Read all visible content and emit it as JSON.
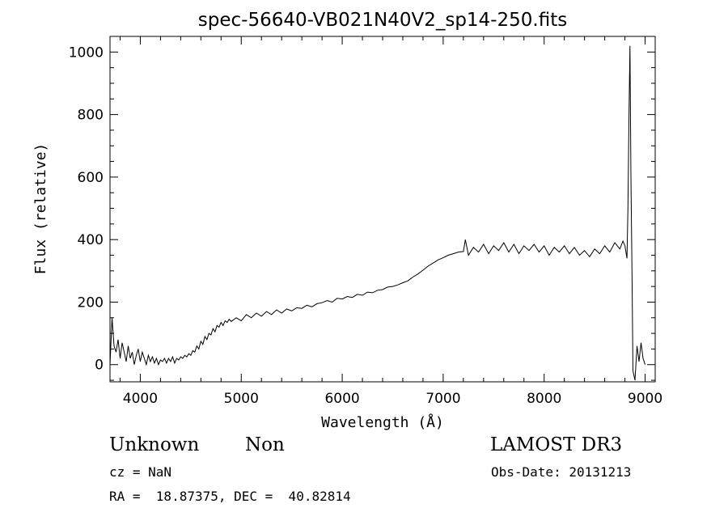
{
  "chart_data": {
    "type": "line",
    "title": "spec-56640-VB021N40V2_sp14-250.fits",
    "xlabel": "Wavelength (Å)",
    "ylabel": "Flux (relative)",
    "xlim": [
      3700,
      9100
    ],
    "ylim": [
      -55,
      1050
    ],
    "xticks": [
      4000,
      5000,
      6000,
      7000,
      8000,
      9000
    ],
    "yticks": [
      0,
      200,
      400,
      600,
      800,
      1000
    ],
    "grid": false,
    "series": [
      {
        "values": [
          [
            3700,
            0
          ],
          [
            3720,
            150
          ],
          [
            3740,
            60
          ],
          [
            3760,
            40
          ],
          [
            3780,
            80
          ],
          [
            3800,
            20
          ],
          [
            3820,
            70
          ],
          [
            3840,
            40
          ],
          [
            3860,
            10
          ],
          [
            3880,
            60
          ],
          [
            3900,
            20
          ],
          [
            3920,
            40
          ],
          [
            3940,
            0
          ],
          [
            3960,
            30
          ],
          [
            3980,
            50
          ],
          [
            4000,
            10
          ],
          [
            4020,
            40
          ],
          [
            4040,
            20
          ],
          [
            4060,
            0
          ],
          [
            4080,
            30
          ],
          [
            4100,
            10
          ],
          [
            4120,
            25
          ],
          [
            4140,
            5
          ],
          [
            4160,
            20
          ],
          [
            4180,
            0
          ],
          [
            4200,
            15
          ],
          [
            4220,
            10
          ],
          [
            4240,
            20
          ],
          [
            4260,
            5
          ],
          [
            4280,
            20
          ],
          [
            4300,
            10
          ],
          [
            4320,
            25
          ],
          [
            4340,
            5
          ],
          [
            4360,
            20
          ],
          [
            4380,
            15
          ],
          [
            4400,
            25
          ],
          [
            4420,
            20
          ],
          [
            4440,
            30
          ],
          [
            4460,
            25
          ],
          [
            4480,
            35
          ],
          [
            4500,
            30
          ],
          [
            4520,
            45
          ],
          [
            4540,
            40
          ],
          [
            4560,
            60
          ],
          [
            4580,
            50
          ],
          [
            4600,
            75
          ],
          [
            4620,
            65
          ],
          [
            4640,
            90
          ],
          [
            4660,
            80
          ],
          [
            4680,
            100
          ],
          [
            4700,
            95
          ],
          [
            4720,
            115
          ],
          [
            4740,
            105
          ],
          [
            4760,
            125
          ],
          [
            4780,
            120
          ],
          [
            4800,
            135
          ],
          [
            4820,
            125
          ],
          [
            4840,
            140
          ],
          [
            4860,
            135
          ],
          [
            4880,
            145
          ],
          [
            4900,
            138
          ],
          [
            4950,
            150
          ],
          [
            5000,
            140
          ],
          [
            5050,
            160
          ],
          [
            5100,
            150
          ],
          [
            5150,
            165
          ],
          [
            5200,
            155
          ],
          [
            5250,
            170
          ],
          [
            5300,
            160
          ],
          [
            5350,
            175
          ],
          [
            5400,
            165
          ],
          [
            5450,
            178
          ],
          [
            5500,
            172
          ],
          [
            5550,
            182
          ],
          [
            5600,
            180
          ],
          [
            5650,
            190
          ],
          [
            5700,
            185
          ],
          [
            5750,
            195
          ],
          [
            5800,
            198
          ],
          [
            5850,
            205
          ],
          [
            5900,
            200
          ],
          [
            5950,
            212
          ],
          [
            6000,
            210
          ],
          [
            6050,
            218
          ],
          [
            6100,
            215
          ],
          [
            6150,
            225
          ],
          [
            6200,
            222
          ],
          [
            6250,
            232
          ],
          [
            6300,
            230
          ],
          [
            6350,
            238
          ],
          [
            6400,
            240
          ],
          [
            6450,
            248
          ],
          [
            6500,
            250
          ],
          [
            6550,
            255
          ],
          [
            6600,
            262
          ],
          [
            6650,
            268
          ],
          [
            6700,
            280
          ],
          [
            6750,
            290
          ],
          [
            6800,
            302
          ],
          [
            6850,
            315
          ],
          [
            6900,
            325
          ],
          [
            6950,
            335
          ],
          [
            7000,
            342
          ],
          [
            7050,
            350
          ],
          [
            7100,
            355
          ],
          [
            7150,
            360
          ],
          [
            7200,
            362
          ],
          [
            7220,
            400
          ],
          [
            7250,
            350
          ],
          [
            7300,
            375
          ],
          [
            7350,
            360
          ],
          [
            7400,
            385
          ],
          [
            7450,
            355
          ],
          [
            7500,
            380
          ],
          [
            7550,
            365
          ],
          [
            7600,
            390
          ],
          [
            7650,
            360
          ],
          [
            7700,
            385
          ],
          [
            7750,
            355
          ],
          [
            7800,
            380
          ],
          [
            7850,
            365
          ],
          [
            7900,
            385
          ],
          [
            7950,
            360
          ],
          [
            8000,
            380
          ],
          [
            8050,
            350
          ],
          [
            8100,
            375
          ],
          [
            8150,
            360
          ],
          [
            8200,
            380
          ],
          [
            8250,
            355
          ],
          [
            8300,
            375
          ],
          [
            8350,
            350
          ],
          [
            8400,
            365
          ],
          [
            8450,
            345
          ],
          [
            8500,
            370
          ],
          [
            8550,
            355
          ],
          [
            8600,
            380
          ],
          [
            8650,
            360
          ],
          [
            8700,
            390
          ],
          [
            8750,
            370
          ],
          [
            8780,
            395
          ],
          [
            8800,
            380
          ],
          [
            8820,
            340
          ],
          [
            8830,
            500
          ],
          [
            8840,
            780
          ],
          [
            8850,
            1020
          ],
          [
            8860,
            600
          ],
          [
            8870,
            300
          ],
          [
            8880,
            -20
          ],
          [
            8900,
            -50
          ],
          [
            8920,
            60
          ],
          [
            8940,
            10
          ],
          [
            8960,
            70
          ],
          [
            8980,
            20
          ],
          [
            9000,
            0
          ]
        ]
      }
    ]
  },
  "footer": {
    "object_class": "Unknown",
    "object_subclass": "Non",
    "survey": "LAMOST DR3",
    "redshift": "cz = NaN",
    "obs_date": "Obs-Date: 20131213",
    "coordinates": "RA =  18.87375, DEC =  40.82814"
  }
}
